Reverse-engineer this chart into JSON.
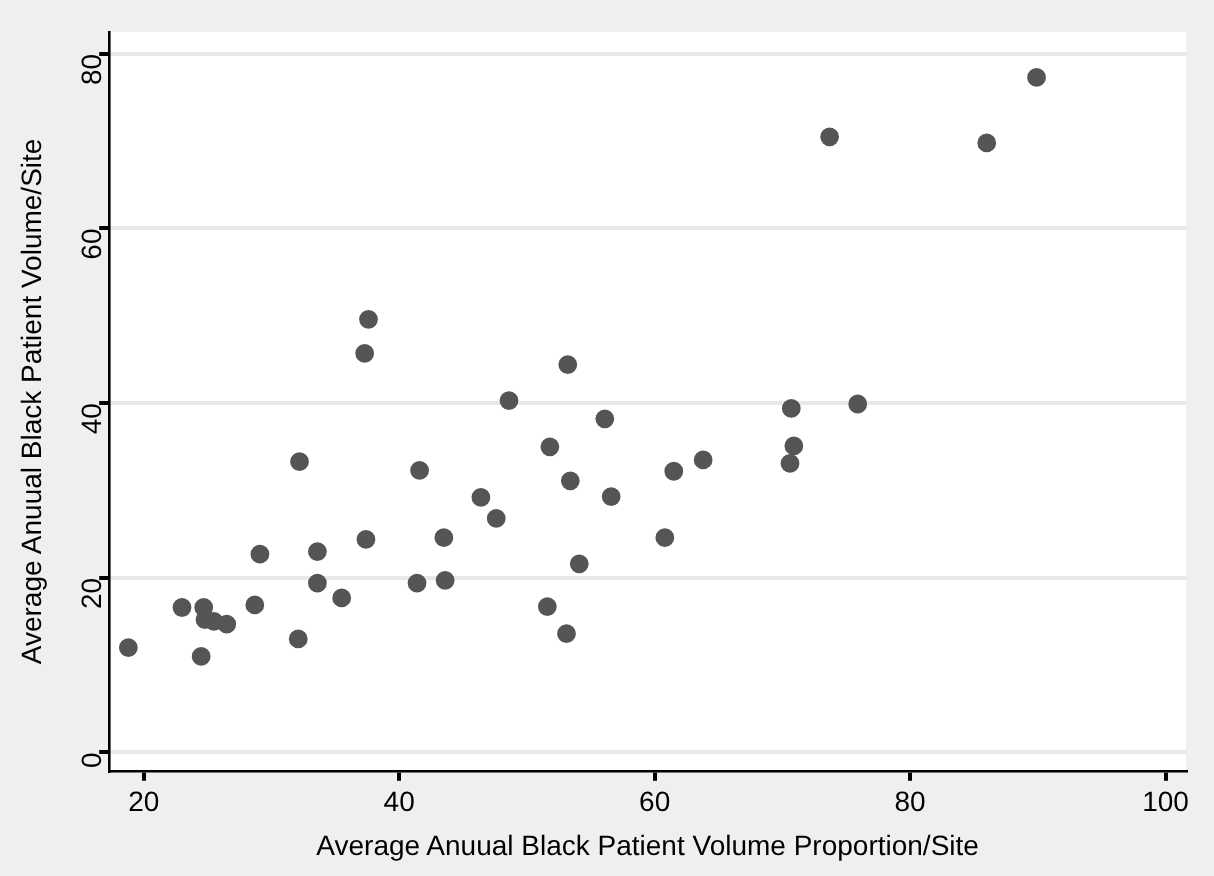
{
  "chart_data": {
    "type": "scatter",
    "xlabel": "Average Anuual Black Patient Volume Proportion/Site",
    "ylabel": "Average Anuual Black Patient Volume/Site",
    "x": [
      18.8,
      23.0,
      24.7,
      24.5,
      24.8,
      25.5,
      26.5,
      28.7,
      29.1,
      32.2,
      32.1,
      33.6,
      33.6,
      35.5,
      37.3,
      37.6,
      37.4,
      41.4,
      41.6,
      43.5,
      43.6,
      46.4,
      47.6,
      48.6,
      51.6,
      51.8,
      53.2,
      53.1,
      53.4,
      54.1,
      56.1,
      56.6,
      60.8,
      61.5,
      63.8,
      70.7,
      70.9,
      70.6,
      75.9,
      73.7,
      86.0,
      89.9
    ],
    "values": [
      12.0,
      16.6,
      16.6,
      11.0,
      15.2,
      15.0,
      14.7,
      16.9,
      22.7,
      33.3,
      13.0,
      23.0,
      19.4,
      17.7,
      45.7,
      49.6,
      24.4,
      19.4,
      32.3,
      24.6,
      19.7,
      29.2,
      26.8,
      40.3,
      16.7,
      35.0,
      44.4,
      13.6,
      31.1,
      21.6,
      38.2,
      29.3,
      24.6,
      32.2,
      33.5,
      39.4,
      35.1,
      33.1,
      39.9,
      70.5,
      69.8,
      77.3
    ],
    "color": "#555555",
    "marker": "circle",
    "grid": "y",
    "legend": false,
    "xlim": [
      17.3,
      101.6
    ],
    "ylim": [
      -2.1,
      82.5
    ],
    "xticks": [
      20,
      40,
      60,
      80,
      100
    ],
    "yticks": [
      0,
      20,
      40,
      60,
      80
    ]
  }
}
